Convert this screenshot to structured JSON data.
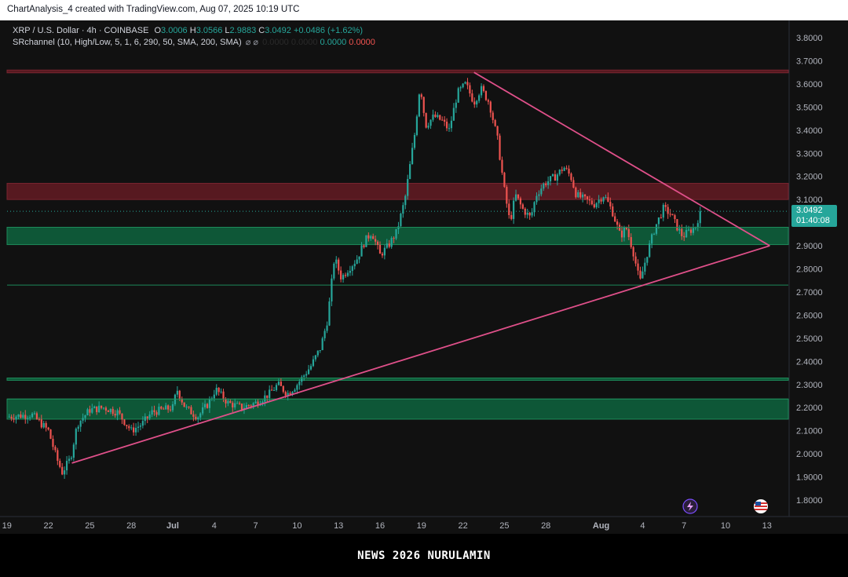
{
  "header": {
    "text": "ChartAnalysis_4 created with TradingView.com, Aug 07, 2025 10:19 UTC"
  },
  "legend": {
    "symbol": "XRP / U.S. Dollar · 4h · COINBASE",
    "o_label": "O",
    "o_value": "3.0006",
    "h_label": "H",
    "h_value": "3.0566",
    "l_label": "L",
    "l_value": "2.9883",
    "c_label": "C",
    "c_value": "3.0492",
    "change": "+0.0486 (+1.62%)",
    "indicator": "SRchannel (10, High/Low, 5, 1, 6, 290, 50, SMA, 200, SMA)",
    "ind_symbols": "⌀ ⌀",
    "ind_dim_1": "0.0000",
    "ind_dim_2": "0.0000",
    "ind_green": "0.0000",
    "ind_red": "0.0000"
  },
  "price_tag": {
    "price": "3.0492",
    "countdown": "01:40:08"
  },
  "footer": {
    "text": "NEWS 2026 NURULAMIN"
  },
  "icons": {
    "left": "lightning-icon",
    "right": "us-flag-icon"
  },
  "colors": {
    "background": "#111111",
    "up": "#26a69a",
    "down": "#ef5350",
    "trendline": "#e0508a",
    "green_zone": "#0f5c3a",
    "red_zone": "#5c1a22"
  },
  "chart_data": {
    "type": "candlestick",
    "symbol": "XRP / U.S. Dollar",
    "timeframe": "4h",
    "exchange": "COINBASE",
    "ylim": [
      1.75,
      3.85
    ],
    "y_ticks": [
      "3.8000",
      "3.7000",
      "3.6000",
      "3.5000",
      "3.4000",
      "3.3000",
      "3.2000",
      "3.1000",
      "2.9000",
      "2.8000",
      "2.7000",
      "2.6000",
      "2.5000",
      "2.4000",
      "2.3000",
      "2.2000",
      "2.1000",
      "2.0000",
      "1.9000",
      "1.8000"
    ],
    "x_ticks": [
      {
        "label": "19",
        "day": -12
      },
      {
        "label": "22",
        "day": -9
      },
      {
        "label": "25",
        "day": -6
      },
      {
        "label": "28",
        "day": -3
      },
      {
        "label": "Jul",
        "day": 0
      },
      {
        "label": "4",
        "day": 3
      },
      {
        "label": "7",
        "day": 6
      },
      {
        "label": "10",
        "day": 9
      },
      {
        "label": "13",
        "day": 12
      },
      {
        "label": "16",
        "day": 15
      },
      {
        "label": "19",
        "day": 18
      },
      {
        "label": "22",
        "day": 21
      },
      {
        "label": "25",
        "day": 24
      },
      {
        "label": "28",
        "day": 27
      },
      {
        "label": "Aug",
        "day": 31
      },
      {
        "label": "4",
        "day": 34
      },
      {
        "label": "7",
        "day": 37
      },
      {
        "label": "10",
        "day": 40
      },
      {
        "label": "13",
        "day": 43
      }
    ],
    "last_price": 3.0492,
    "path": [
      [
        -12.0,
        2.16
      ],
      [
        -10.2,
        2.17
      ],
      [
        -9.0,
        2.1
      ],
      [
        -8.4,
        1.98
      ],
      [
        -8.0,
        1.92
      ],
      [
        -7.4,
        1.98
      ],
      [
        -6.9,
        2.13
      ],
      [
        -6.0,
        2.19
      ],
      [
        -5.0,
        2.2
      ],
      [
        -4.0,
        2.18
      ],
      [
        -3.0,
        2.1
      ],
      [
        -2.2,
        2.13
      ],
      [
        -1.5,
        2.18
      ],
      [
        0.0,
        2.2
      ],
      [
        0.3,
        2.28
      ],
      [
        0.9,
        2.2
      ],
      [
        1.8,
        2.16
      ],
      [
        2.6,
        2.22
      ],
      [
        3.1,
        2.28
      ],
      [
        4.0,
        2.22
      ],
      [
        5.0,
        2.2
      ],
      [
        6.0,
        2.22
      ],
      [
        7.0,
        2.26
      ],
      [
        7.6,
        2.3
      ],
      [
        8.3,
        2.26
      ],
      [
        9.0,
        2.3
      ],
      [
        10.0,
        2.38
      ],
      [
        10.7,
        2.46
      ],
      [
        11.2,
        2.58
      ],
      [
        11.7,
        2.85
      ],
      [
        12.2,
        2.76
      ],
      [
        12.7,
        2.8
      ],
      [
        13.3,
        2.84
      ],
      [
        13.9,
        2.92
      ],
      [
        14.4,
        2.96
      ],
      [
        15.0,
        2.86
      ],
      [
        15.6,
        2.9
      ],
      [
        16.2,
        2.96
      ],
      [
        16.8,
        3.1
      ],
      [
        17.5,
        3.38
      ],
      [
        17.9,
        3.6
      ],
      [
        18.3,
        3.42
      ],
      [
        18.9,
        3.46
      ],
      [
        19.5,
        3.44
      ],
      [
        20.0,
        3.4
      ],
      [
        20.6,
        3.56
      ],
      [
        21.2,
        3.6
      ],
      [
        21.8,
        3.52
      ],
      [
        22.3,
        3.58
      ],
      [
        22.9,
        3.52
      ],
      [
        23.5,
        3.36
      ],
      [
        24.0,
        3.14
      ],
      [
        24.4,
        3.0
      ],
      [
        24.8,
        3.12
      ],
      [
        25.3,
        3.06
      ],
      [
        25.9,
        3.02
      ],
      [
        26.3,
        3.12
      ],
      [
        26.9,
        3.17
      ],
      [
        27.7,
        3.2
      ],
      [
        28.3,
        3.24
      ],
      [
        28.8,
        3.2
      ],
      [
        29.2,
        3.12
      ],
      [
        29.8,
        3.1
      ],
      [
        30.5,
        3.08
      ],
      [
        31.2,
        3.12
      ],
      [
        31.8,
        3.05
      ],
      [
        32.4,
        2.94
      ],
      [
        32.8,
        2.98
      ],
      [
        33.3,
        2.88
      ],
      [
        33.8,
        2.74
      ],
      [
        34.3,
        2.86
      ],
      [
        34.9,
        2.98
      ],
      [
        35.5,
        3.06
      ],
      [
        36.0,
        3.04
      ],
      [
        36.5,
        2.98
      ],
      [
        36.9,
        2.94
      ],
      [
        37.3,
        2.96
      ],
      [
        37.8,
        2.98
      ],
      [
        38.2,
        3.05
      ]
    ],
    "annotations": {
      "resistance_zones": [
        [
          3.1,
          3.17
        ],
        [
          3.648,
          3.66
        ]
      ],
      "support_zones": [
        [
          2.905,
          2.98
        ],
        [
          2.318,
          2.328
        ],
        [
          2.15,
          2.237
        ]
      ],
      "lines": [
        2.73,
        3.0492
      ],
      "descending_trendline": [
        [
          21.8,
          3.65
        ],
        [
          43.2,
          2.9
        ]
      ],
      "ascending_trendline": [
        [
          -7.3,
          1.96
        ],
        [
          43.2,
          2.9
        ]
      ]
    }
  }
}
